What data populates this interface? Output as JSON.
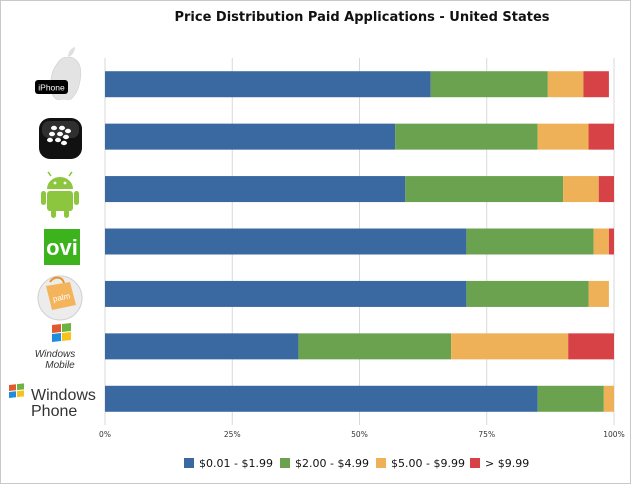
{
  "chart_data": {
    "type": "bar",
    "orientation": "horizontal",
    "stacked": true,
    "title": "Price Distribution Paid Applications - United States",
    "categories": [
      "iPhone",
      "BlackBerry",
      "Android",
      "Ovi",
      "Palm",
      "Windows Mobile",
      "Windows Phone"
    ],
    "series": [
      {
        "name": "$0.01 - $1.99",
        "color": "#3A68A0",
        "values": [
          64,
          57,
          59,
          71,
          71,
          38,
          85
        ]
      },
      {
        "name": "$2.00 - $4.99",
        "color": "#6AA24F",
        "values": [
          23,
          28,
          31,
          25,
          24,
          30,
          13
        ]
      },
      {
        "name": "$5.00 - $9.99",
        "color": "#EEB157",
        "values": [
          7,
          10,
          7,
          3,
          4,
          23,
          2
        ]
      },
      {
        "name": "> $9.99",
        "color": "#D64246",
        "values": [
          5,
          5,
          3,
          1,
          0,
          9,
          0
        ]
      }
    ],
    "xlim": [
      0,
      100
    ],
    "x_ticks": [
      "0%",
      "25%",
      "50%",
      "75%",
      "100%"
    ],
    "grid": true,
    "legend_position": "bottom"
  },
  "logos": {
    "iphone": {
      "icon": "apple-logo-icon",
      "text": "iPhone"
    },
    "blackberry": {
      "icon": "blackberry-logo-icon"
    },
    "android": {
      "icon": "android-robot-icon"
    },
    "ovi": {
      "icon": "ovi-logo-icon",
      "text": "ovi"
    },
    "palm": {
      "icon": "palm-logo-icon",
      "text": "palm"
    },
    "windows_mobile": {
      "icon": "windows-flag-icon",
      "line1": "Windows",
      "line2": "Mobile"
    },
    "windows_phone": {
      "icon": "windows-flag-icon",
      "line1": "Windows",
      "line2": "Phone"
    }
  }
}
